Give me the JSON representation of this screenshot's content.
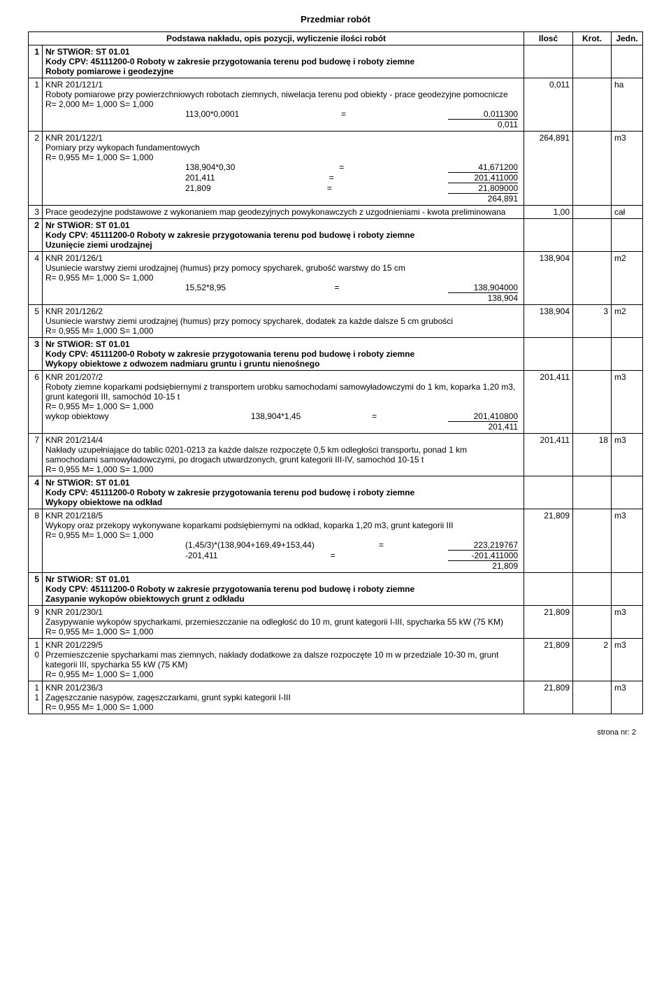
{
  "title": "Przedmiar robót",
  "header": {
    "desc": "Podstawa nakładu, opis pozycji, wyliczenie ilości robót",
    "qty": "Ilosć",
    "mult": "Krot.",
    "unit": "Jedn."
  },
  "sections": [
    {
      "idx": "1",
      "heading_lines": [
        "Nr STWiOR: ST 01.01",
        "Kody CPV: 45111200-0  Roboty w zakresie przygotowania terenu pod budowę i roboty ziemne",
        "Roboty pomiarowe i geodezyjne"
      ],
      "items": [
        {
          "idx": "1",
          "desc": "KNR 201/121/1\nRoboty pomiarowe przy powierzchniowych robotach ziemnych, niwelacja terenu pod obiekty - prace geodezyjne pomocnicze\nR= 2,000  M= 1,000  S= 1,000",
          "calcs": [
            {
              "l": "113,00*0,0001",
              "r": "0,011300",
              "under": true
            }
          ],
          "result": {
            "v": "0,011",
            "q": "0,011",
            "u": "ha"
          }
        },
        {
          "idx": "2",
          "desc": "KNR 201/122/1\nPomiary przy wykopach fundamentowych\nR= 0,955  M= 1,000  S= 1,000",
          "calcs": [
            {
              "l": "138,904*0,30",
              "r": "41,671200"
            },
            {
              "l": "201,411",
              "r": "201,411000"
            },
            {
              "l": "21,809",
              "r": "21,809000",
              "under": true
            }
          ],
          "result": {
            "v": "264,891",
            "q": "264,891",
            "u": "m3"
          }
        },
        {
          "idx": "3",
          "desc": "Prace geodezyjne podstawowe z wykonaniem map geodezyjnych powykonawczych z uzgodnieniami - kwota preliminowana",
          "result_inline": {
            "q": "1,00",
            "u": "cał"
          }
        }
      ]
    },
    {
      "idx": "2",
      "heading_lines": [
        "Nr STWiOR: ST 01.01",
        "Kody CPV: 45111200-0  Roboty w zakresie przygotowania terenu pod budowę i roboty ziemne",
        "Uzunięcie ziemi urodzajnej"
      ],
      "items": [
        {
          "idx": "4",
          "desc": "KNR 201/126/1\nUsuniecie warstwy ziemi urodzajnej (humus) przy pomocy spycharek, grubość warstwy do 15 cm\nR= 0,955  M= 1,000  S= 1,000",
          "calcs": [
            {
              "l": "15,52*8,95",
              "r": "138,904000",
              "under": true
            }
          ],
          "result": {
            "v": "138,904",
            "q": "138,904",
            "u": "m2"
          }
        },
        {
          "idx": "5",
          "desc": "KNR 201/126/2\nUsuniecie warstwy ziemi urodzajnej (humus) przy pomocy spycharek, dodatek za każde dalsze 5 cm grubości\nR= 0,955  M= 1,000  S= 1,000",
          "result_inline": {
            "q": "138,904",
            "m": "3",
            "u": "m2"
          }
        }
      ]
    },
    {
      "idx": "3",
      "heading_lines": [
        "Nr STWiOR: ST 01.01",
        "Kody CPV: 45111200-0  Roboty w zakresie przygotowania terenu pod budowę i roboty ziemne",
        "Wykopy obiektowe z odwozem nadmiaru gruntu i gruntu nienośnego"
      ],
      "items": [
        {
          "idx": "6",
          "desc": "KNR 201/207/2\nRoboty ziemne koparkami podsiębiernymi z transportem urobku samochodami samowyładowczymi do 1 km, koparka 1,20 m3, grunt kategorii III, samochód 10-15 t\nR= 0,955  M= 1,000  S= 1,000",
          "calcs": [
            {
              "lbl": "wykop obiektowy",
              "l": "138,904*1,45",
              "r": "201,410800",
              "under": true
            }
          ],
          "result": {
            "v": "201,411",
            "q": "201,411",
            "u": "m3"
          }
        },
        {
          "idx": "7",
          "desc": "KNR 201/214/4\nNakłady uzupełniające do tablic 0201-0213 za każde dalsze rozpoczęte 0,5 km odległości transportu, ponad 1 km samochodami samowyładowczymi, po drogach utwardzonych, grunt kategorii III-IV, samochód 10-15 t\nR= 0,955  M= 1,000  S= 1,000",
          "result_inline": {
            "q": "201,411",
            "m": "18",
            "u": "m3"
          }
        }
      ]
    },
    {
      "idx": "4",
      "heading_lines": [
        "Nr STWiOR: ST 01.01",
        "Kody CPV: 45111200-0  Roboty w zakresie przygotowania terenu pod budowę i roboty ziemne",
        "Wykopy obiektowe na odkład"
      ],
      "items": [
        {
          "idx": "8",
          "desc": "KNR 201/218/5\nWykopy oraz przekopy wykonywane koparkami podsiębiernymi na odkład, koparka 1,20 m3, grunt kategorii III\nR= 0,955  M= 1,000  S= 1,000",
          "calcs": [
            {
              "l": "(1,45/3)*(138,904+169,49+153,44)",
              "r": "223,219767"
            },
            {
              "l": "-201,411",
              "r": "-201,411000",
              "under": true
            }
          ],
          "result": {
            "v": "21,809",
            "q": "21,809",
            "u": "m3"
          }
        }
      ]
    },
    {
      "idx": "5",
      "heading_lines": [
        "Nr STWiOR: ST 01.01",
        "Kody CPV: 45111200-0  Roboty w zakresie przygotowania terenu pod budowę i roboty ziemne",
        "Zasypanie wykopów obiektowych grunt z odkładu"
      ],
      "items": [
        {
          "idx": "9",
          "desc": "KNR 201/230/1\nZasypywanie wykopów spycharkami, przemieszczanie na odległość do 10 m, grunt kategorii I-III, spycharka 55 kW (75 KM)\nR= 0,955  M= 1,000  S= 1,000",
          "result_inline": {
            "q": "21,809",
            "u": "m3"
          }
        },
        {
          "idx": "10",
          "desc": "KNR 201/229/5\nPrzemieszczenie spycharkami mas ziemnych, nakłady dodatkowe za dalsze rozpoczęte 10 m w przedziale 10-30 m, grunt kategorii III, spycharka 55 kW (75 KM)\nR= 0,955  M= 1,000  S= 1,000",
          "result_inline": {
            "q": "21,809",
            "m": "2",
            "u": "m3"
          }
        },
        {
          "idx": "11",
          "desc": "KNR 201/236/3\nZagęszczanie nasypów, zagęszczarkami, grunt sypki kategorii I-III\nR= 0,955  M= 1,000  S= 1,000",
          "result_inline": {
            "q": "21,809",
            "u": "m3"
          }
        }
      ]
    }
  ],
  "footer": "strona nr:   2"
}
